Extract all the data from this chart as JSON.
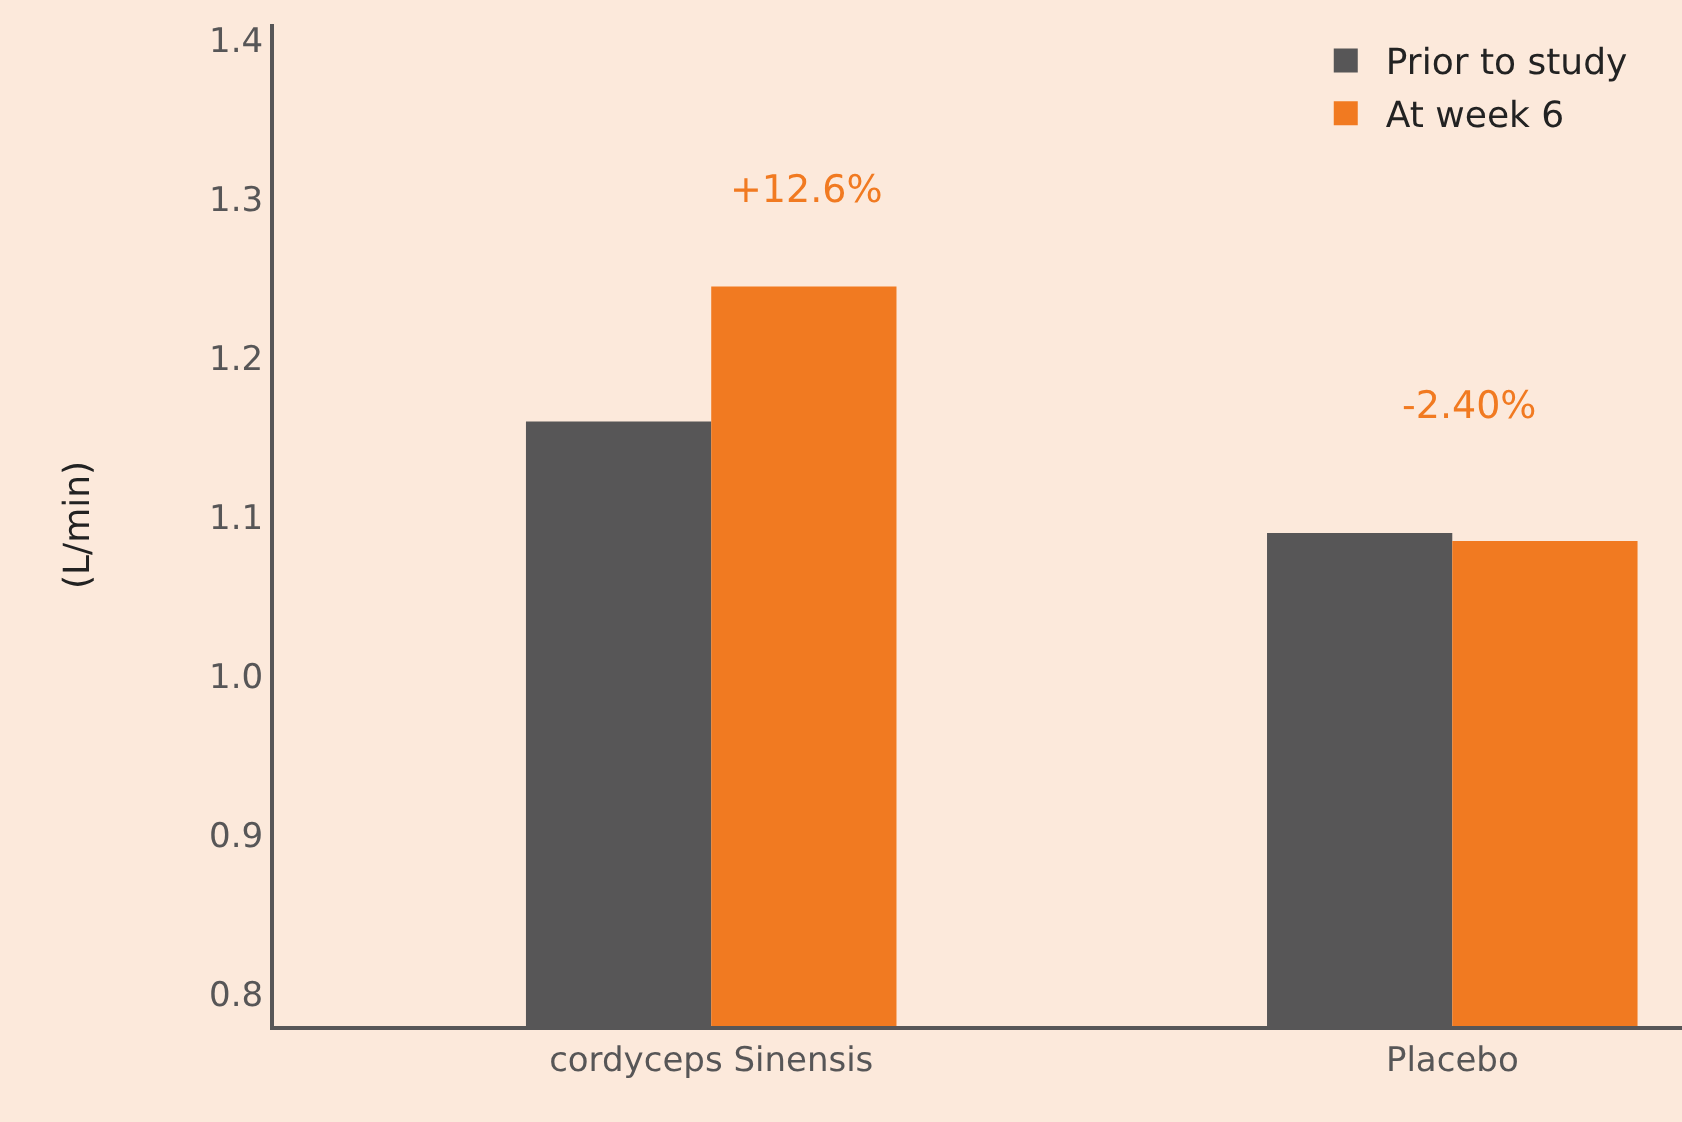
{
  "chart_data": {
    "type": "bar",
    "ylabel": "(L/min)",
    "categories": [
      "cordyceps Sinensis",
      "Placebo"
    ],
    "series": [
      {
        "name": "Prior to study",
        "color": "#575657",
        "values": [
          1.16,
          1.09
        ]
      },
      {
        "name": "At week 6",
        "color": "#f17a21",
        "values": [
          1.245,
          1.085
        ]
      }
    ],
    "annotations": [
      "+12.6%",
      "-2.40%"
    ],
    "ylim": [
      0.78,
      1.41
    ],
    "yticks": [
      {
        "value": 0.8,
        "label": "0.8"
      },
      {
        "value": 0.9,
        "label": "0.9"
      },
      {
        "value": 1.0,
        "label": "1.0"
      },
      {
        "value": 1.1,
        "label": "1.1"
      },
      {
        "value": 1.2,
        "label": "1.2"
      },
      {
        "value": 1.3,
        "label": "1.3"
      },
      {
        "value": 1.4,
        "label": "1.4"
      }
    ],
    "grid": false,
    "legend": "top right"
  }
}
